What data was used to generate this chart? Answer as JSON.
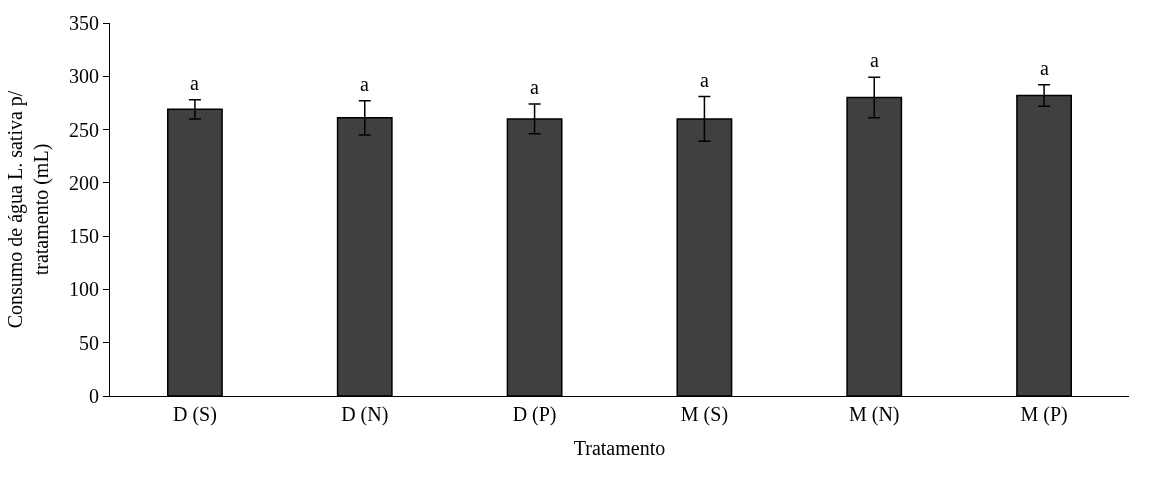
{
  "chart_data": {
    "type": "bar",
    "xlabel": "Tratamento",
    "ylabel": "Consumo de água L. sativa p/ tratamento (mL)",
    "categories": [
      "D (S)",
      "D (N)",
      "D (P)",
      "M (S)",
      "M (N)",
      "M (P)"
    ],
    "values": [
      269,
      261,
      260,
      260,
      280,
      282
    ],
    "color": "#404040",
    "errors": [
      9,
      16,
      14,
      21,
      19,
      10
    ],
    "ylim": [
      0,
      350
    ],
    "yticks": [
      0,
      50,
      100,
      150,
      200,
      250,
      300,
      350
    ],
    "annotations": [
      "a",
      "a",
      "a",
      "a",
      "a",
      "a"
    ]
  }
}
